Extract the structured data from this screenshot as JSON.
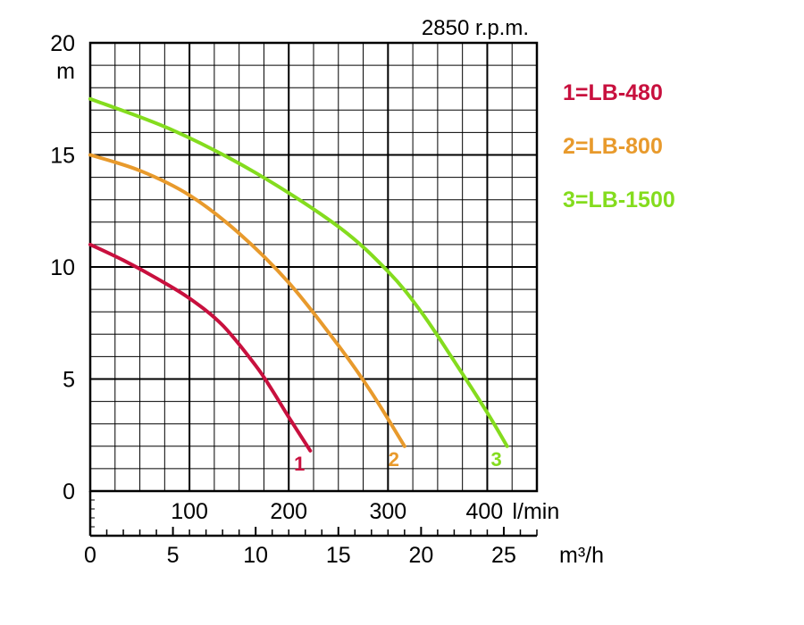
{
  "chart_data": {
    "type": "line",
    "title": "2850 r.p.m.",
    "ylabel": "m",
    "ylim": [
      0,
      20
    ],
    "yticks": [
      0,
      5,
      10,
      15,
      20
    ],
    "xlabel_lpm": "l/min",
    "xlabel_m3h": "m³/h",
    "xlim_m3h": [
      0,
      27
    ],
    "xticks_lpm": [
      {
        "value": 100,
        "label": "100"
      },
      {
        "value": 200,
        "label": "200"
      },
      {
        "value": 300,
        "label": "300"
      },
      {
        "value": 400,
        "label": "400"
      }
    ],
    "xticks_m3h": [
      0,
      5,
      10,
      15,
      20,
      25
    ],
    "grid": true,
    "legend_position": "right",
    "series": [
      {
        "name": "1=LB-480",
        "curve_label": "1",
        "color": "#c8103e",
        "x_m3h": [
          0,
          2,
          4,
          6,
          8,
          10,
          11,
          12,
          13.3
        ],
        "y_m": [
          11,
          10.3,
          9.5,
          8.6,
          7.4,
          5.6,
          4.5,
          3.3,
          1.8
        ]
      },
      {
        "name": "2=LB-800",
        "curve_label": "2",
        "color": "#e89a2c",
        "x_m3h": [
          0,
          3,
          6,
          9,
          12,
          15,
          17,
          19
        ],
        "y_m": [
          15,
          14.3,
          13.2,
          11.5,
          9.3,
          6.5,
          4.4,
          2
        ]
      },
      {
        "name": "3=LB-1500",
        "curve_label": "3",
        "color": "#84dc1e",
        "x_m3h": [
          0,
          5,
          10,
          15,
          18,
          20,
          22,
          24,
          25.2
        ],
        "y_m": [
          17.5,
          16.1,
          14.2,
          11.8,
          9.8,
          8.0,
          5.8,
          3.5,
          2
        ]
      }
    ]
  }
}
